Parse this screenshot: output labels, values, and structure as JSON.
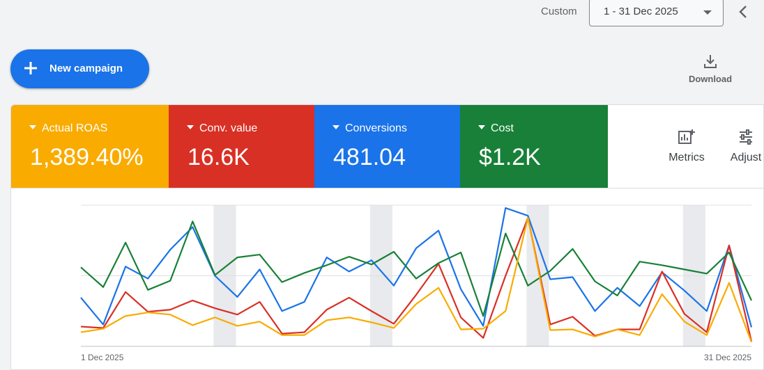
{
  "header": {
    "range_label": "Custom",
    "date_range": "1 - 31 Dec 2025",
    "collapse_icon": "chevron-left-icon"
  },
  "actions": {
    "new_campaign": "New campaign",
    "download": "Download"
  },
  "metrics": [
    {
      "name": "Actual ROAS",
      "value": "1,389.40%",
      "color": "#f9ab00"
    },
    {
      "name": "Conv. value",
      "value": "16.6K",
      "color": "#d93025"
    },
    {
      "name": "Conversions",
      "value": "481.04",
      "color": "#1a73e8"
    },
    {
      "name": "Cost",
      "value": "$1.2K",
      "color": "#188038"
    }
  ],
  "tools": {
    "metrics": "Metrics",
    "adjust": "Adjust"
  },
  "chart_data": {
    "type": "line",
    "x_labels": [
      "1 Dec 2025",
      "31 Dec 2025"
    ],
    "grid": true,
    "weekend_bands": [
      6,
      13,
      20,
      27
    ],
    "series": [
      {
        "color": "#1a73e8",
        "values": [
          69,
          31,
          113,
          96,
          137,
          169,
          100,
          70,
          109,
          50,
          63,
          126,
          106,
          122,
          86,
          139,
          164,
          81,
          29,
          196,
          185,
          95,
          98,
          50,
          83,
          57,
          105,
          79,
          50,
          143,
          27
        ]
      },
      {
        "color": "#d93025",
        "values": [
          28,
          26,
          77,
          49,
          52,
          65,
          54,
          45,
          63,
          18,
          20,
          52,
          69,
          50,
          32,
          73,
          117,
          41,
          12,
          100,
          182,
          31,
          42,
          15,
          24,
          24,
          106,
          46,
          20,
          143,
          7
        ]
      },
      {
        "color": "#188038",
        "values": [
          112,
          84,
          147,
          80,
          93,
          177,
          101,
          126,
          130,
          91,
          104,
          115,
          127,
          116,
          134,
          96,
          118,
          133,
          43,
          160,
          86,
          107,
          138,
          92,
          72,
          120,
          115,
          109,
          103,
          133,
          65
        ]
      },
      {
        "color": "#f9ab00",
        "values": [
          20,
          25,
          43,
          48,
          45,
          30,
          41,
          29,
          35,
          16,
          16,
          37,
          41,
          34,
          26,
          60,
          83,
          24,
          25,
          50,
          182,
          23,
          24,
          14,
          24,
          16,
          74,
          35,
          16,
          90,
          6
        ]
      }
    ],
    "ylim": [
      0,
      200
    ]
  }
}
